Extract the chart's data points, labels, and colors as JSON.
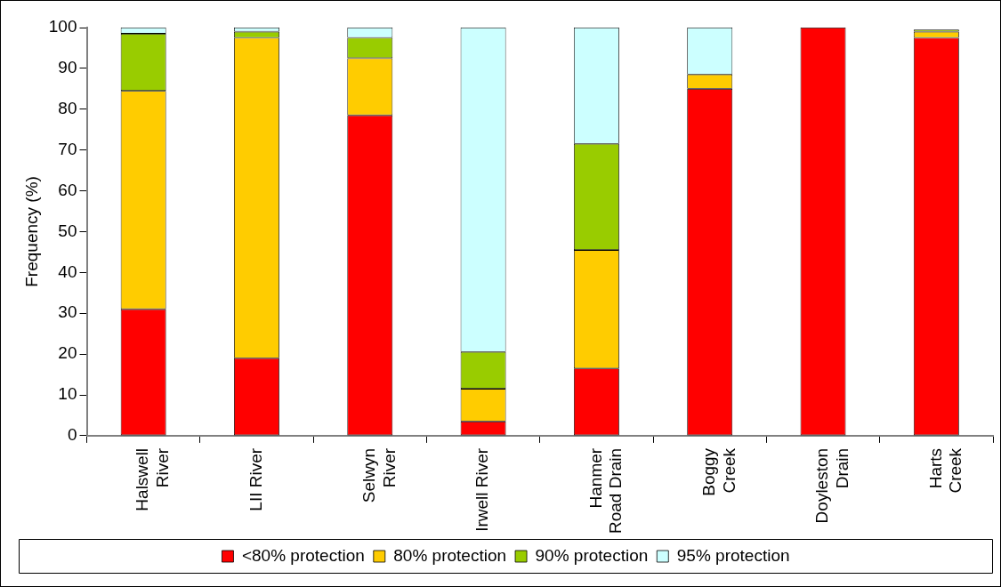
{
  "chart_data": {
    "type": "bar",
    "stacked": true,
    "ylabel": "Frequency (%)",
    "categories": [
      "Halswell River",
      "LII River",
      "Selwyn River",
      "Irwell River",
      "Hanmer Road Drain",
      "Boggy Creek",
      "Doyleston Drain",
      "Harts Creek"
    ],
    "series": [
      {
        "name": "<80% protection",
        "color": "#ff0000",
        "values": [
          31,
          19,
          78.5,
          3.5,
          16.5,
          85,
          100,
          97.5
        ]
      },
      {
        "name": "80% protection",
        "color": "#ffcc00",
        "values": [
          53.5,
          78.5,
          14,
          8,
          29,
          3.5,
          0,
          1.5
        ]
      },
      {
        "name": "90% protection",
        "color": "#99cc00",
        "values": [
          14,
          1.5,
          5,
          9,
          26,
          0,
          0,
          0.5
        ]
      },
      {
        "name": "95% protection",
        "color": "#ccffff",
        "values": [
          1.5,
          1,
          2.5,
          79.5,
          28.5,
          11.5,
          0,
          null
        ]
      }
    ],
    "ylim": [
      0,
      100
    ],
    "yticks": [
      0,
      10,
      20,
      30,
      40,
      50,
      60,
      70,
      80,
      90,
      100
    ],
    "grid": false,
    "legend": "bottom"
  }
}
